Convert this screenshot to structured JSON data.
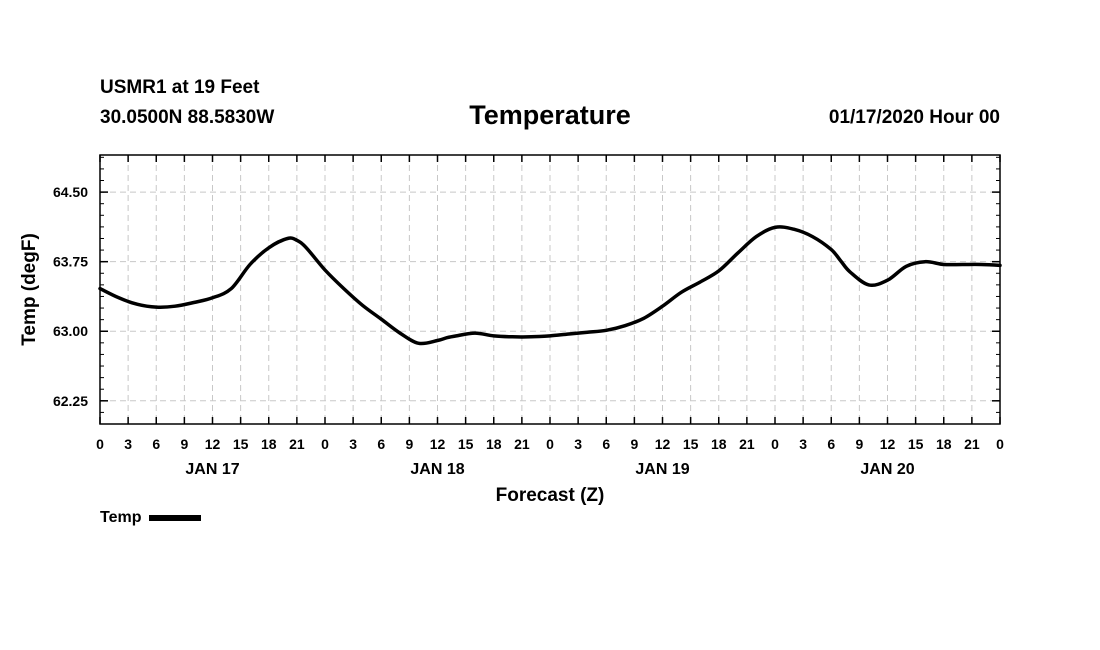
{
  "header": {
    "station": "USMR1 at 19 Feet",
    "coords": "30.0500N 88.5830W",
    "title": "Temperature",
    "run": "01/17/2020 Hour 00"
  },
  "legend": {
    "label": "Temp"
  },
  "chart_data": {
    "type": "line",
    "title": "Temperature",
    "xlabel": "Forecast (Z)",
    "ylabel": "Temp (degF)",
    "xlim": [
      0,
      96
    ],
    "ylim": [
      62.0,
      64.9
    ],
    "yticks": [
      62.25,
      63.0,
      63.75,
      64.5
    ],
    "ytick_labels": [
      "62.25",
      "63.00",
      "63.75",
      "64.50"
    ],
    "xticks": [
      0,
      3,
      6,
      9,
      12,
      15,
      18,
      21,
      24,
      27,
      30,
      33,
      36,
      39,
      42,
      45,
      48,
      51,
      54,
      57,
      60,
      63,
      66,
      69,
      72,
      75,
      78,
      81,
      84,
      87,
      90,
      93,
      96
    ],
    "xtick_labels": [
      "0",
      "3",
      "6",
      "9",
      "12",
      "15",
      "18",
      "21",
      "0",
      "3",
      "6",
      "9",
      "12",
      "15",
      "18",
      "21",
      "0",
      "3",
      "6",
      "9",
      "12",
      "15",
      "18",
      "21",
      "0",
      "3",
      "6",
      "9",
      "12",
      "15",
      "18",
      "21",
      "0"
    ],
    "day_labels": [
      {
        "label": "JAN 17",
        "x": 12
      },
      {
        "label": "JAN 18",
        "x": 36
      },
      {
        "label": "JAN 19",
        "x": 60
      },
      {
        "label": "JAN 20",
        "x": 84
      }
    ],
    "grid": true,
    "series": [
      {
        "name": "Temp",
        "x": [
          0,
          2,
          4,
          6,
          8,
          10,
          12,
          14,
          16,
          18,
          20,
          21,
          22,
          24,
          26,
          28,
          30,
          32,
          34,
          36,
          37,
          38,
          40,
          42,
          44,
          46,
          48,
          50,
          52,
          54,
          56,
          58,
          60,
          62,
          64,
          66,
          68,
          70,
          72,
          74,
          76,
          78,
          79,
          80,
          82,
          84,
          86,
          88,
          90,
          92,
          94,
          96
        ],
        "values": [
          63.46,
          63.36,
          63.29,
          63.26,
          63.27,
          63.31,
          63.36,
          63.46,
          63.72,
          63.9,
          64.0,
          63.98,
          63.9,
          63.66,
          63.46,
          63.28,
          63.13,
          62.98,
          62.87,
          62.9,
          62.93,
          62.95,
          62.98,
          62.95,
          62.94,
          62.94,
          62.95,
          62.97,
          62.99,
          63.01,
          63.06,
          63.14,
          63.27,
          63.42,
          63.53,
          63.65,
          63.84,
          64.02,
          64.12,
          64.1,
          64.02,
          63.88,
          63.76,
          63.64,
          63.5,
          63.55,
          63.7,
          63.75,
          63.72,
          63.72,
          63.72,
          63.71
        ]
      }
    ]
  }
}
